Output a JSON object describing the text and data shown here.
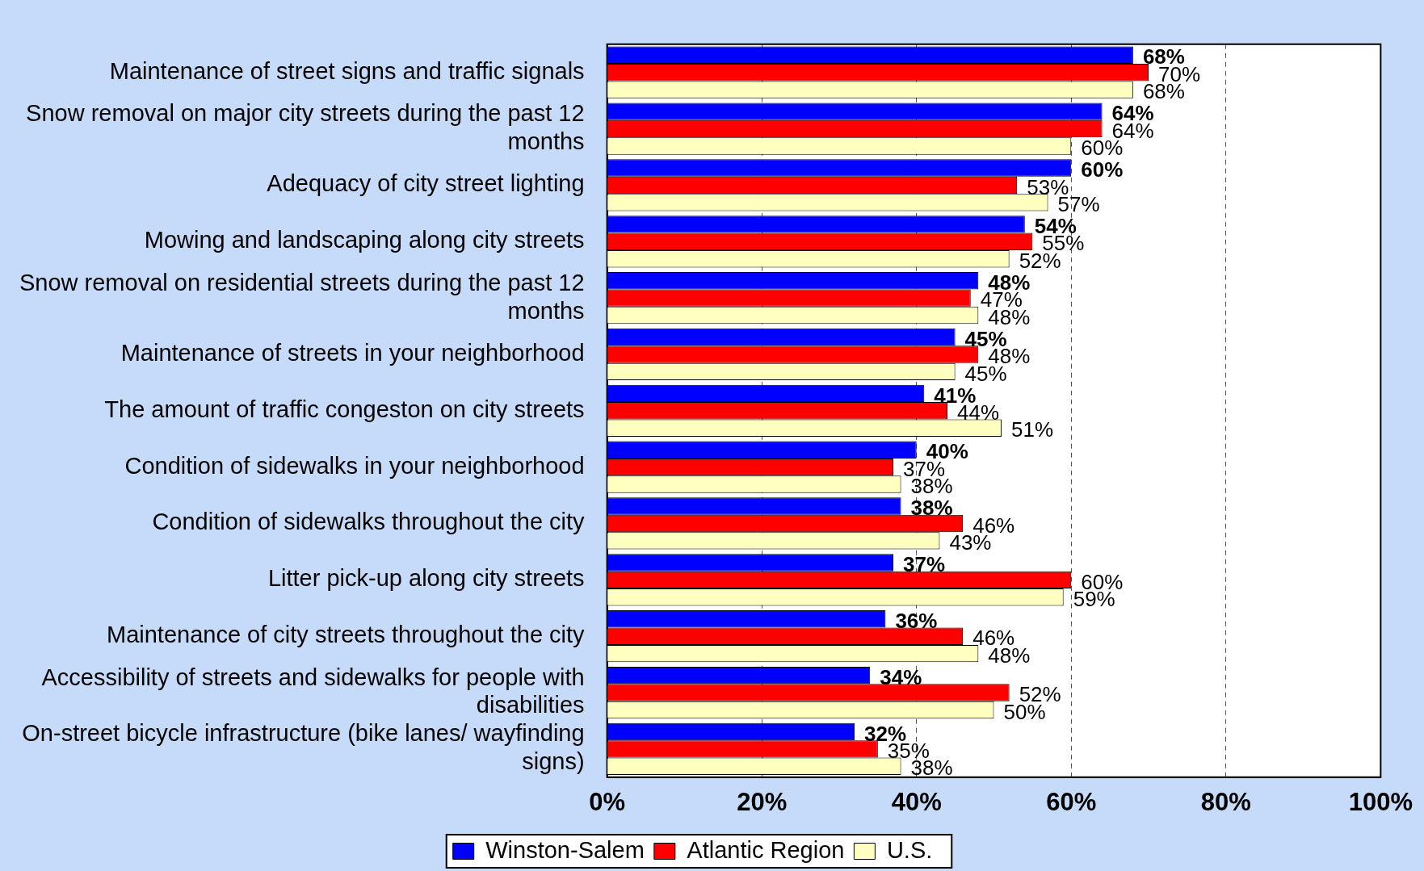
{
  "chart_data": {
    "type": "bar",
    "orientation": "horizontal",
    "categories": [
      "Maintenance of street signs and traffic signals",
      "Snow removal on major city streets during the past 12 months",
      "Adequacy of city street lighting",
      "Mowing and landscaping along city streets",
      "Snow removal on residential streets during the past 12 months",
      "Maintenance of streets in your neighborhood",
      "The amount of traffic congeston on city streets",
      "Condition of sidewalks in your neighborhood",
      "Condition of sidewalks throughout the city",
      "Litter pick-up along city streets",
      "Maintenance of city streets throughout the city",
      "Accessibility of streets and sidewalks for people with disabilities",
      "On-street bicycle infrastructure (bike lanes/ wayfinding signs)"
    ],
    "series": [
      {
        "name": "Winston-Salem",
        "color": "#0000ff",
        "values": [
          68,
          64,
          60,
          54,
          48,
          45,
          41,
          40,
          38,
          37,
          36,
          34,
          32
        ],
        "value_labels": [
          "68%",
          "64%",
          "60%",
          "54%",
          "48%",
          "45%",
          "41%",
          "40%",
          "38%",
          "37%",
          "36%",
          "34%",
          "32%"
        ]
      },
      {
        "name": "Atlantic Region",
        "color": "#ff0000",
        "values": [
          70,
          64,
          53,
          55,
          47,
          48,
          44,
          37,
          46,
          60,
          46,
          52,
          35
        ],
        "value_labels": [
          "70%",
          "64%",
          "53%",
          "55%",
          "47%",
          "48%",
          "44%",
          "37%",
          "46%",
          "60%",
          "46%",
          "52%",
          "35%"
        ]
      },
      {
        "name": "U.S.",
        "color": "#ffffc0",
        "values": [
          68,
          60,
          57,
          52,
          48,
          45,
          51,
          38,
          43,
          59,
          48,
          50,
          38
        ],
        "value_labels": [
          "68%",
          "60%",
          "57%",
          "52%",
          "48%",
          "45%",
          "51%",
          "38%",
          "43%",
          "59%",
          "48%",
          "50%",
          "38%"
        ]
      }
    ],
    "xlim": [
      0,
      100
    ],
    "xticks": [
      {
        "value": 0,
        "label": "0%"
      },
      {
        "value": 20,
        "label": "20%"
      },
      {
        "value": 40,
        "label": "40%"
      },
      {
        "value": 60,
        "label": "60%"
      },
      {
        "value": 80,
        "label": "80%"
      },
      {
        "value": 100,
        "label": "100%"
      }
    ],
    "grid": "x",
    "legend": "bottom"
  }
}
